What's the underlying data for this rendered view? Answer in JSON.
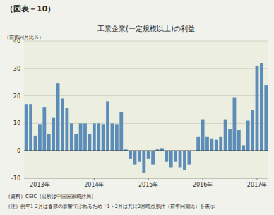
{
  "chart_data": {
    "type": "bar",
    "title": "工業企業(一定規模以上)の利益",
    "ylabel": "（前年同月比％）",
    "annotations": [
      "（図表－10）",
      "（資料）CEIC（出所は中国国家統計局）",
      "（注）例年1-2月は春節の影響でぶれるため「1・2月は共に2月時点累計（前年同期比）を表示"
    ],
    "categories": [
      null,
      null,
      null,
      "2013年",
      null,
      null,
      null,
      null,
      null,
      null,
      null,
      null,
      null,
      null,
      null,
      "2014年",
      null,
      null,
      null,
      null,
      null,
      null,
      null,
      null,
      null,
      null,
      null,
      "2015年",
      null,
      null,
      null,
      null,
      null,
      null,
      null,
      null,
      null,
      null,
      null,
      "2016年",
      null,
      null,
      null,
      null,
      null,
      null,
      null,
      null,
      null,
      null,
      null,
      "2017年",
      null,
      null
    ],
    "values": [
      17,
      17,
      5.5,
      9.5,
      16,
      6,
      12,
      24.5,
      19,
      15.5,
      10,
      6,
      10,
      10,
      6,
      10,
      10,
      9.5,
      18,
      10,
      9.5,
      14,
      0.5,
      -3,
      -5,
      -4,
      -8,
      -3,
      -5,
      0.5,
      1,
      -4,
      -6,
      -4,
      -6,
      -7,
      -5,
      0,
      5,
      11.5,
      5,
      4.5,
      4,
      5,
      11.5,
      8,
      19.5,
      7.5,
      2,
      11,
      15,
      31,
      32,
      24
    ],
    "color": "#5b8db8",
    "ylim": [
      -10,
      40
    ],
    "yticks": [
      -10,
      0,
      10,
      20,
      30,
      40
    ],
    "grid": true
  }
}
